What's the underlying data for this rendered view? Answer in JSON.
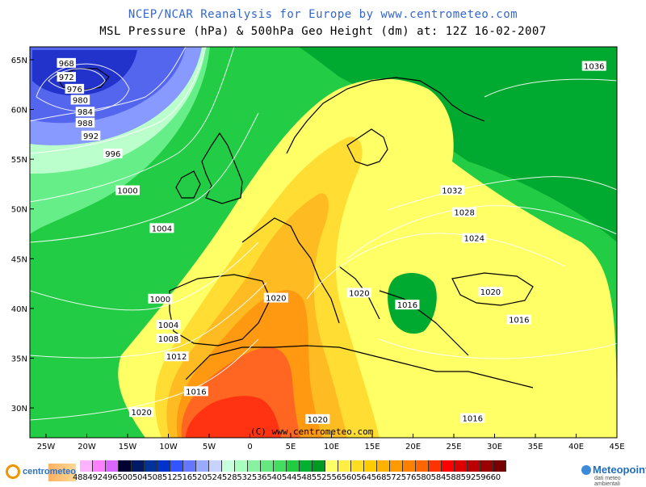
{
  "title_line1": "NCEP/NCAR Reanalysis for Europe by www.centrometeo.com",
  "title_line2": "MSL Pressure (hPa) & 500hPa Geo Height (dm) at: 12Z 16-02-2007",
  "copyright": "(C) www.centrometeo.com",
  "lat_labels": [
    "65N",
    "60N",
    "55N",
    "50N",
    "45N",
    "40N",
    "35N",
    "30N"
  ],
  "lon_labels": [
    "25W",
    "20W",
    "15W",
    "10W",
    "5W",
    "0",
    "5E",
    "10E",
    "15E",
    "20E",
    "25E",
    "30E",
    "35E",
    "40E",
    "45E"
  ],
  "isobars": [
    {
      "value": "968",
      "lon": -22.5,
      "lat": 64.6
    },
    {
      "value": "972",
      "lon": -22.5,
      "lat": 63.2
    },
    {
      "value": "976",
      "lon": -21.5,
      "lat": 62.0
    },
    {
      "value": "980",
      "lon": -20.8,
      "lat": 60.9
    },
    {
      "value": "984",
      "lon": -20.2,
      "lat": 59.7
    },
    {
      "value": "988",
      "lon": -20.2,
      "lat": 58.6
    },
    {
      "value": "992",
      "lon": -19.5,
      "lat": 57.3
    },
    {
      "value": "996",
      "lon": -16.8,
      "lat": 55.5
    },
    {
      "value": "1000",
      "lon": -15.0,
      "lat": 51.8
    },
    {
      "value": "1004",
      "lon": -10.8,
      "lat": 48.0
    },
    {
      "value": "1000",
      "lon": -11.0,
      "lat": 40.9
    },
    {
      "value": "1004",
      "lon": -10.0,
      "lat": 38.3
    },
    {
      "value": "1008",
      "lon": -10.0,
      "lat": 36.9
    },
    {
      "value": "1012",
      "lon": -9.0,
      "lat": 35.1
    },
    {
      "value": "1016",
      "lon": -6.6,
      "lat": 31.6
    },
    {
      "value": "1020",
      "lon": -13.3,
      "lat": 29.5
    },
    {
      "value": "1020",
      "lon": 8.3,
      "lat": 28.8
    },
    {
      "value": "1020",
      "lon": 3.2,
      "lat": 41.0
    },
    {
      "value": "1020",
      "lon": 13.4,
      "lat": 41.5
    },
    {
      "value": "1016",
      "lon": 19.3,
      "lat": 40.3
    },
    {
      "value": "1020",
      "lon": 29.5,
      "lat": 41.6
    },
    {
      "value": "1016",
      "lon": 33.0,
      "lat": 38.8
    },
    {
      "value": "1024",
      "lon": 27.5,
      "lat": 47.0
    },
    {
      "value": "1028",
      "lon": 26.3,
      "lat": 49.6
    },
    {
      "value": "1032",
      "lon": 24.8,
      "lat": 51.8
    },
    {
      "value": "1036",
      "lon": 42.2,
      "lat": 64.3
    },
    {
      "value": "1016",
      "lon": 27.3,
      "lat": 28.9
    }
  ],
  "colorbar": {
    "colors": [
      "#ffb3ff",
      "#ff80ff",
      "#d966ff",
      "#000033",
      "#001a66",
      "#003399",
      "#0033cc",
      "#3355ff",
      "#6677ff",
      "#99aaff",
      "#c8d2ff",
      "#c8ffdc",
      "#a8ffc0",
      "#88f2a0",
      "#66e880",
      "#44dd60",
      "#22cc40",
      "#00b030",
      "#009922",
      "#ffff66",
      "#ffee44",
      "#ffdd22",
      "#ffcc00",
      "#ffb300",
      "#ff9900",
      "#ff8000",
      "#ff6600",
      "#ff3300",
      "#ff0000",
      "#dd0000",
      "#bb0000",
      "#990000",
      "#770000"
    ],
    "labels": "48849249650050450851251652052452853253654054454855255656056456857257658058458859259660"
  },
  "logos": {
    "left_text": "centrometeo",
    "right_text": "Meteopoint",
    "right_sub": "dati meteo ambientali"
  },
  "field_colors": {
    "deep_blue": "#2233cc",
    "blue": "#5566ee",
    "light_blue": "#8899ff",
    "pale_green": "#bbffcc",
    "light_green": "#66ee88",
    "green": "#22cc44",
    "dark_green": "#00aa30",
    "yellow": "#ffff66",
    "gold": "#ffdd33",
    "light_orange": "#ffbb22",
    "orange": "#ff9911",
    "dark_orange": "#ff6622",
    "red": "#ff3311"
  }
}
